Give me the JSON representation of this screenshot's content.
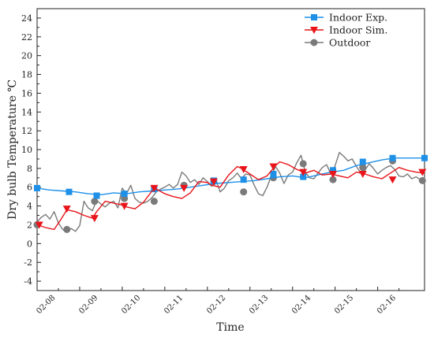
{
  "chart_data": {
    "type": "line",
    "title": "",
    "xlabel": "Time",
    "ylabel": "Dry bulb Temperature ℃",
    "ylim": [
      -5,
      25
    ],
    "yticks": [
      -4,
      -2,
      0,
      2,
      4,
      6,
      8,
      10,
      12,
      14,
      16,
      18,
      20,
      22,
      24
    ],
    "xlim": [
      0,
      9.1
    ],
    "xtick_labels": [
      "02-08",
      "02-09",
      "02-10",
      "02-11",
      "02-12",
      "02-13",
      "02-14",
      "02-15",
      "02-16"
    ],
    "legend_position": "top-right",
    "grid": false,
    "series": [
      {
        "name": "Indoor Exp.",
        "color": "#1E90E8",
        "marker": "square",
        "x": [
          0,
          0.3,
          0.6,
          0.9,
          1.2,
          1.5,
          1.8,
          2.1,
          2.4,
          2.7,
          3.0,
          3.3,
          3.6,
          3.9,
          4.2,
          4.5,
          4.8,
          5.1,
          5.4,
          5.7,
          6.0,
          6.3,
          6.6,
          6.9,
          7.2,
          7.5,
          7.8,
          8.1,
          8.4,
          8.7,
          9.1
        ],
        "y": [
          5.9,
          5.7,
          5.6,
          5.5,
          5.3,
          5.2,
          5.4,
          5.3,
          5.5,
          5.6,
          5.7,
          5.8,
          6.0,
          6.2,
          6.4,
          6.5,
          6.6,
          6.7,
          6.9,
          7.1,
          7.2,
          7.0,
          7.3,
          7.6,
          7.8,
          8.3,
          8.6,
          8.9,
          9.1,
          9.1,
          9.1
        ],
        "marker_x": [
          0,
          0.75,
          1.4,
          2.05,
          2.75,
          4.15,
          4.85,
          5.55,
          6.25,
          6.95,
          7.65,
          8.35,
          9.1
        ],
        "marker_y": [
          5.9,
          5.5,
          5.1,
          5.3,
          5.8,
          6.7,
          6.8,
          7.4,
          7.1,
          7.8,
          8.7,
          9.1,
          9.1
        ]
      },
      {
        "name": "Indoor Sim.",
        "color": "#E8141A",
        "marker": "triangle-down",
        "x": [
          0,
          0.2,
          0.4,
          0.55,
          0.7,
          0.9,
          1.1,
          1.3,
          1.4,
          1.6,
          1.8,
          2.0,
          2.1,
          2.3,
          2.5,
          2.7,
          2.8,
          3.0,
          3.2,
          3.4,
          3.6,
          3.8,
          4.0,
          4.1,
          4.3,
          4.5,
          4.7,
          4.8,
          5.0,
          5.2,
          5.4,
          5.6,
          5.7,
          5.9,
          6.1,
          6.3,
          6.5,
          6.7,
          6.9,
          7.1,
          7.3,
          7.5,
          7.7,
          7.9,
          8.1,
          8.3,
          8.5,
          8.7,
          8.9,
          9.1
        ],
        "y": [
          2.0,
          1.7,
          1.5,
          2.5,
          3.6,
          3.4,
          3.0,
          2.7,
          3.4,
          4.5,
          4.3,
          4.1,
          3.9,
          3.7,
          4.4,
          5.6,
          5.8,
          5.3,
          5.0,
          4.8,
          5.4,
          6.6,
          6.5,
          6.2,
          6.0,
          7.3,
          8.2,
          8.0,
          7.4,
          6.8,
          7.2,
          8.3,
          8.7,
          8.4,
          7.9,
          7.5,
          7.8,
          7.3,
          7.4,
          7.2,
          7.0,
          7.6,
          7.4,
          7.1,
          6.9,
          7.5,
          8.1,
          7.8,
          7.6,
          7.5
        ],
        "marker_x": [
          0.05,
          0.7,
          1.35,
          2.05,
          2.75,
          3.45,
          4.15,
          4.85,
          5.55,
          6.25,
          6.95,
          7.65,
          8.35,
          9.05
        ],
        "marker_y": [
          2.0,
          3.7,
          2.7,
          4.0,
          5.9,
          5.9,
          6.6,
          7.9,
          8.2,
          7.6,
          7.4,
          7.4,
          6.8,
          7.6
        ]
      },
      {
        "name": "Outdoor",
        "color": "#7A7A7A",
        "marker": "circle",
        "x": [
          0,
          0.1,
          0.2,
          0.3,
          0.4,
          0.5,
          0.6,
          0.7,
          0.8,
          0.9,
          1.0,
          1.1,
          1.2,
          1.3,
          1.4,
          1.5,
          1.6,
          1.7,
          1.8,
          1.9,
          2.0,
          2.1,
          2.2,
          2.3,
          2.4,
          2.5,
          2.6,
          2.7,
          2.8,
          2.9,
          3.0,
          3.1,
          3.2,
          3.3,
          3.4,
          3.5,
          3.6,
          3.7,
          3.8,
          3.9,
          4.0,
          4.1,
          4.2,
          4.3,
          4.4,
          4.5,
          4.6,
          4.7,
          4.8,
          4.9,
          5.0,
          5.1,
          5.2,
          5.3,
          5.4,
          5.5,
          5.6,
          5.7,
          5.8,
          5.9,
          6.0,
          6.1,
          6.2,
          6.3,
          6.4,
          6.5,
          6.6,
          6.7,
          6.8,
          6.9,
          7.0,
          7.1,
          7.2,
          7.3,
          7.4,
          7.5,
          7.6,
          7.7,
          7.8,
          7.9,
          8.0,
          8.1,
          8.2,
          8.3,
          8.4,
          8.5,
          8.6,
          8.7,
          8.8,
          8.9,
          9.0,
          9.1
        ],
        "y": [
          2.3,
          2.8,
          3.1,
          2.6,
          3.4,
          2.2,
          1.5,
          1.2,
          1.6,
          1.3,
          1.9,
          4.5,
          3.8,
          3.5,
          4.6,
          4.2,
          3.9,
          4.3,
          4.5,
          3.8,
          5.9,
          5.3,
          6.2,
          4.8,
          4.4,
          4.3,
          4.5,
          4.9,
          5.5,
          5.8,
          6.0,
          6.3,
          5.9,
          6.3,
          7.6,
          7.2,
          6.5,
          6.8,
          6.3,
          7.0,
          6.6,
          6.1,
          6.8,
          5.5,
          5.9,
          6.7,
          7.0,
          7.5,
          6.9,
          7.4,
          7.3,
          6.2,
          5.3,
          5.1,
          6.0,
          7.2,
          8.2,
          7.5,
          6.4,
          7.3,
          7.6,
          8.6,
          9.4,
          7.6,
          7.0,
          6.9,
          7.5,
          8.1,
          8.4,
          7.4,
          8.3,
          9.7,
          9.3,
          8.8,
          9.0,
          8.2,
          7.5,
          7.8,
          8.5,
          8.0,
          7.4,
          7.8,
          8.1,
          8.3,
          7.9,
          7.2,
          7.1,
          7.4,
          6.9,
          7.1,
          6.8,
          7.0
        ],
        "marker_x": [
          0,
          0.7,
          1.35,
          2.05,
          2.75,
          3.45,
          4.15,
          4.85,
          5.55,
          6.25,
          6.95,
          7.65,
          8.35,
          9.05
        ],
        "marker_y": [
          2.0,
          1.5,
          4.5,
          4.8,
          4.5,
          6.2,
          6.6,
          5.5,
          7.0,
          8.5,
          6.8,
          8.1,
          8.8,
          6.7
        ]
      }
    ]
  }
}
